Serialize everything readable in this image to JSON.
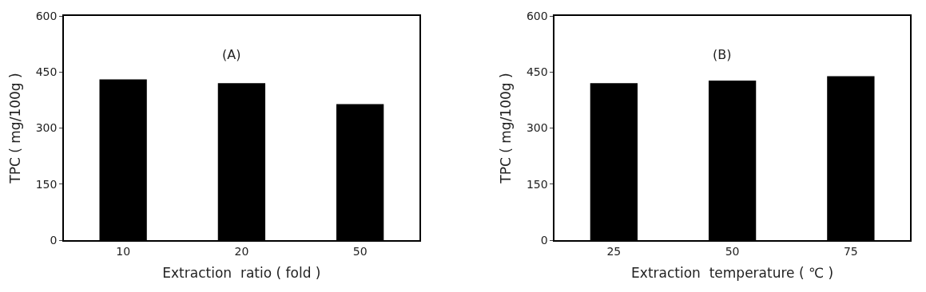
{
  "chart_data": [
    {
      "type": "bar",
      "ylabel": "TPC ( mg/100g )",
      "xlabel": "Extraction  ratio ( fold )",
      "annotations": [
        "(A)"
      ],
      "categories": [
        "10",
        "20",
        "50"
      ],
      "values": [
        430,
        420,
        364
      ],
      "color": "#000000",
      "ylim": [
        0,
        600
      ],
      "yticks": [
        0,
        150,
        300,
        450,
        600
      ],
      "grid": false,
      "legend": false
    },
    {
      "type": "bar",
      "ylabel": "TPC ( mg/100g )",
      "xlabel": "Extraction  temperature ( ℃ )",
      "annotations": [
        "(B)"
      ],
      "categories": [
        "25",
        "50",
        "75"
      ],
      "values": [
        420,
        427,
        439
      ],
      "color": "#000000",
      "ylim": [
        0,
        600
      ],
      "yticks": [
        0,
        150,
        300,
        450,
        600
      ],
      "grid": false,
      "legend": false
    }
  ]
}
